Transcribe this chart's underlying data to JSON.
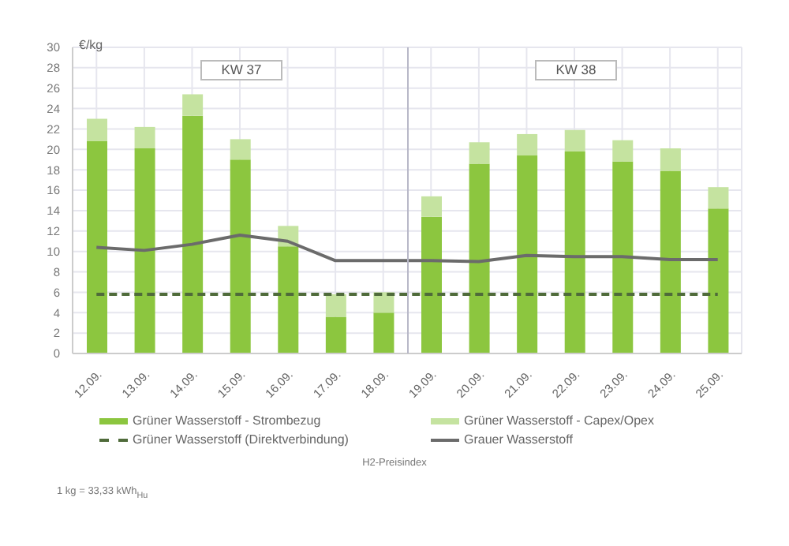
{
  "chart_data": {
    "type": "bar",
    "ylabel": "€/kg",
    "categories": [
      "12.09.",
      "13.09.",
      "14.09.",
      "15.09.",
      "16.09.",
      "17.09.",
      "18.09.",
      "19.09.",
      "20.09.",
      "21.09.",
      "22.09.",
      "23.09.",
      "24.09.",
      "25.09."
    ],
    "stacked": true,
    "series": [
      {
        "name": "Grüner Wasserstoff - Strombezug",
        "color": "#8cc63f",
        "values": [
          20.8,
          20.1,
          23.3,
          19.0,
          10.5,
          3.6,
          4.0,
          13.4,
          18.6,
          19.4,
          19.8,
          18.8,
          17.9,
          14.2
        ]
      },
      {
        "name": "Grüner Wasserstoff - Capex/Opex",
        "color": "#c5e3a0",
        "values": [
          2.2,
          2.1,
          2.1,
          2.0,
          2.0,
          2.2,
          2.0,
          2.0,
          2.1,
          2.1,
          2.1,
          2.1,
          2.2,
          2.1
        ]
      },
      {
        "name": "Grüner Wasserstoff (Direktverbindung)",
        "type": "line",
        "line_style": "dashed",
        "color": "#4f6b3a",
        "values": [
          5.8,
          5.8,
          5.8,
          5.8,
          5.8,
          5.8,
          5.8,
          5.8,
          5.8,
          5.8,
          5.8,
          5.8,
          5.8,
          5.8
        ]
      },
      {
        "name": "Grauer Wasserstoff",
        "type": "line",
        "line_style": "solid",
        "color": "#6b6b6b",
        "values": [
          10.4,
          10.1,
          10.7,
          11.6,
          11.0,
          9.1,
          9.1,
          9.1,
          9.0,
          9.6,
          9.5,
          9.5,
          9.2,
          9.2
        ]
      }
    ],
    "ylim": [
      0,
      30
    ],
    "yticks": [
      0,
      2,
      4,
      6,
      8,
      10,
      12,
      14,
      16,
      18,
      20,
      22,
      24,
      26,
      28,
      30
    ],
    "ref_lines": [
      {
        "axis": "x",
        "value": "19.09.",
        "color": "#b8b8c8"
      }
    ],
    "grid": true,
    "legend": "bottom",
    "marker": "none",
    "annotations": [
      "KW 37",
      "KW 38",
      "H2-Preisindex",
      "1 kg = 33,33 kWh$_{Hu}$"
    ]
  }
}
